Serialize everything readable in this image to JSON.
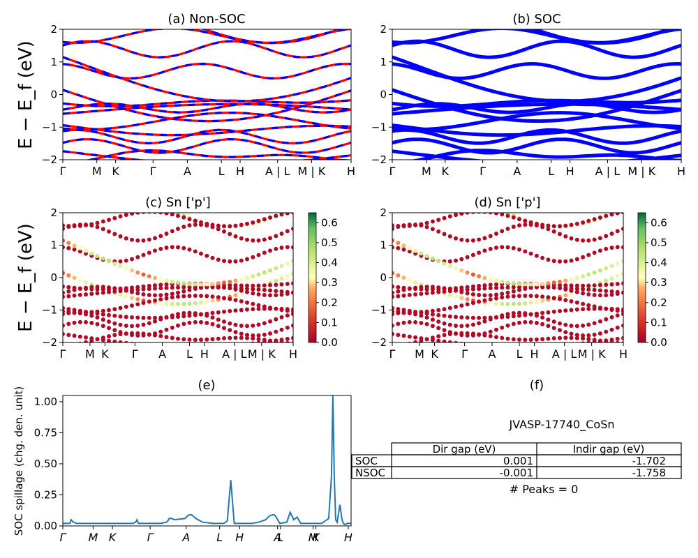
{
  "figure_id": "JVASP-17740_CoSn",
  "chart_data": [
    {
      "panel": "a",
      "type": "line",
      "title": "(a) Non-SOC",
      "ylabel": "E − E_f (eV)",
      "ylim": [
        -2,
        2
      ],
      "yticks": [
        "2",
        "1",
        "0",
        "−1",
        "−2"
      ],
      "kpoint_labels": [
        "Γ",
        "M",
        "K",
        "Γ",
        "A",
        "L",
        "H",
        "A | L",
        "M | K",
        "H"
      ],
      "series": [
        {
          "name": "spin-up",
          "color": "#ff0000",
          "dash": "solid"
        },
        {
          "name": "spin-down",
          "color": "#0000ff",
          "dash": "dashed"
        }
      ]
    },
    {
      "panel": "b",
      "type": "line",
      "title": "(b) SOC",
      "ylim": [
        -2,
        2
      ],
      "yticks": [
        "2",
        "1",
        "0",
        "−1",
        "−2"
      ],
      "kpoint_labels": [
        "Γ",
        "M",
        "K",
        "Γ",
        "A",
        "L",
        "H",
        "A | L",
        "M | K",
        "H"
      ],
      "series": [
        {
          "name": "SOC bands",
          "color": "#0000ff"
        }
      ]
    },
    {
      "panel": "c",
      "type": "scatter",
      "title": "(c)  Sn ['p']",
      "ylabel": "E − E_f (eV)",
      "ylim": [
        -2,
        2
      ],
      "yticks": [
        "2",
        "1",
        "0",
        "−1",
        "−2"
      ],
      "kpoint_labels": [
        "Γ",
        "M",
        "K",
        "Γ",
        "A",
        "L",
        "H",
        "A | L",
        "M | K",
        "H"
      ],
      "colorbar": {
        "ticks": [
          "0.6",
          "0.5",
          "0.4",
          "0.3",
          "0.2",
          "0.1",
          "0.0"
        ],
        "range": [
          0,
          0.65
        ],
        "cmap": "RdYlGn"
      }
    },
    {
      "panel": "d",
      "type": "scatter",
      "title": "(d) Sn ['p']",
      "ylim": [
        -2,
        2
      ],
      "yticks": [
        "2",
        "1",
        "0",
        "−1",
        "−2"
      ],
      "kpoint_labels": [
        "Γ",
        "M",
        "K",
        "Γ",
        "A",
        "L",
        "H",
        "A | L",
        "M | K",
        "H"
      ],
      "colorbar": {
        "ticks": [
          "0.6",
          "0.5",
          "0.4",
          "0.3",
          "0.2",
          "0.1",
          "0.0"
        ],
        "range": [
          0,
          0.65
        ],
        "cmap": "RdYlGn"
      }
    },
    {
      "panel": "e",
      "type": "line",
      "title": "(e)",
      "ylabel": "SOC spillage (chg. den. unit)",
      "ylim": [
        0,
        1.05
      ],
      "yticks": [
        "1.00",
        "0.75",
        "0.50",
        "0.25",
        "0.00"
      ],
      "kpoint_labels": [
        "Γ",
        "M",
        "K",
        "Γ",
        "A",
        "L",
        "H",
        "A",
        "L",
        "M",
        "K",
        "H"
      ],
      "color": "#1f77b4",
      "x": [
        0,
        4,
        10,
        12,
        15,
        20,
        30,
        40,
        48,
        52,
        55,
        60,
        70,
        80,
        90,
        100,
        104,
        106,
        108,
        112,
        120,
        130,
        140,
        148,
        150,
        152,
        155,
        160,
        175,
        178,
        181,
        184,
        190,
        200,
        215,
        230,
        235,
        240,
        245,
        250,
        260,
        270,
        280,
        290,
        295,
        300,
        302,
        304,
        310,
        320,
        325,
        330,
        335,
        340,
        350,
        360,
        370,
        380,
        384,
        386,
        388,
        390,
        392,
        396,
        399,
        401,
        403,
        407,
        412
      ],
      "y": [
        0.02,
        0.02,
        0.02,
        0.05,
        0.03,
        0.02,
        0.02,
        0.02,
        0.02,
        0.02,
        0.02,
        0.02,
        0.02,
        0.02,
        0.02,
        0.02,
        0.03,
        0.05,
        0.02,
        0.02,
        0.02,
        0.02,
        0.02,
        0.03,
        0.04,
        0.06,
        0.06,
        0.05,
        0.06,
        0.08,
        0.09,
        0.09,
        0.06,
        0.03,
        0.02,
        0.02,
        0.04,
        0.37,
        0.02,
        0.02,
        0.02,
        0.02,
        0.03,
        0.05,
        0.08,
        0.09,
        0.09,
        0.08,
        0.02,
        0.03,
        0.11,
        0.05,
        0.07,
        0.02,
        0.02,
        0.02,
        0.02,
        0.06,
        0.4,
        1.05,
        0.4,
        0.05,
        0.03,
        0.17,
        0.05,
        0.02,
        0.01,
        0.02,
        0.02
      ]
    }
  ],
  "table": {
    "title": "(f)",
    "subtitle": "JVASP-17740_CoSn",
    "headers": [
      "",
      "Dir gap (eV)",
      "Indir gap (eV)"
    ],
    "rows": [
      [
        "SOC",
        "0.001",
        "-1.702"
      ],
      [
        "NSOC",
        "-0.001",
        "-1.758"
      ]
    ],
    "footer": "# Peaks = 0"
  }
}
